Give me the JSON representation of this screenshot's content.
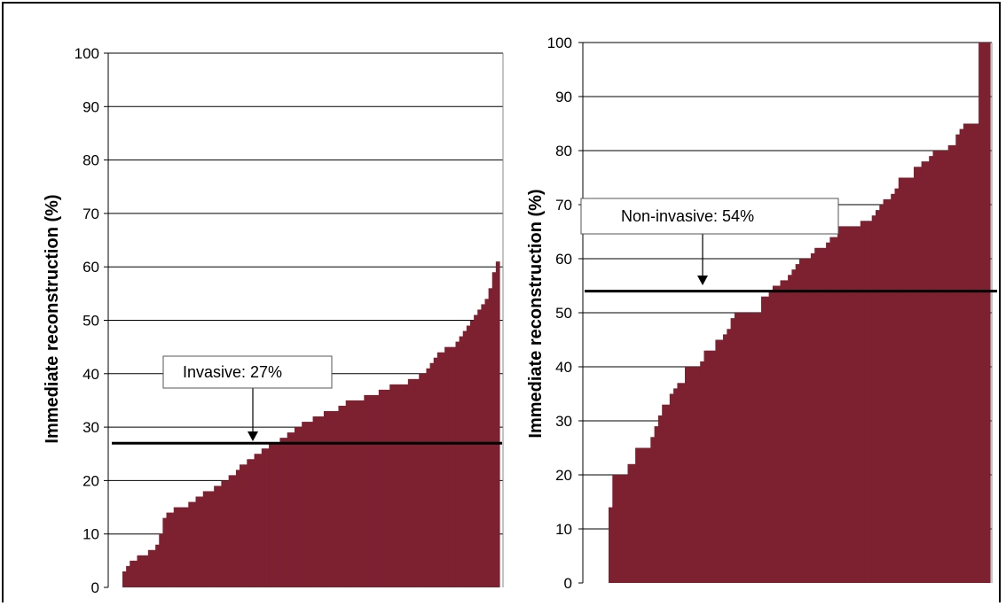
{
  "chart_data": [
    {
      "type": "bar",
      "ylabel": "Immediate reconstruction (%)",
      "ylim": [
        0,
        100
      ],
      "yticks": [
        0,
        10,
        20,
        30,
        40,
        50,
        60,
        70,
        80,
        90,
        100
      ],
      "yticks_text": [
        "0",
        "10",
        "20",
        "30",
        "40",
        "50",
        "60",
        "70",
        "80",
        "90",
        "100"
      ],
      "grid": true,
      "bar_color": "#7d2131",
      "values": [
        3,
        4,
        5,
        5,
        6,
        6,
        6,
        7,
        7,
        8,
        10,
        13,
        14,
        14,
        15,
        15,
        15,
        15,
        16,
        16,
        17,
        17,
        18,
        18,
        18,
        19,
        19,
        20,
        20,
        21,
        21,
        22,
        23,
        23,
        24,
        24,
        25,
        25,
        26,
        26,
        27,
        27,
        27,
        28,
        28,
        29,
        29,
        30,
        30,
        31,
        31,
        31,
        32,
        32,
        32,
        33,
        33,
        33,
        33,
        34,
        34,
        35,
        35,
        35,
        35,
        35,
        36,
        36,
        36,
        36,
        37,
        37,
        37,
        38,
        38,
        38,
        38,
        38,
        39,
        39,
        39,
        40,
        40,
        41,
        42,
        43,
        44,
        44,
        45,
        45,
        45,
        46,
        47,
        48,
        49,
        50,
        51,
        52,
        53,
        54,
        56,
        59,
        61
      ],
      "reference": {
        "value": 27,
        "label": "Invasive:  27%",
        "color": "#000000"
      }
    },
    {
      "type": "bar",
      "ylabel": "Immediate reconstruction (%)",
      "ylim": [
        0,
        100
      ],
      "yticks": [
        0,
        10,
        20,
        30,
        40,
        50,
        60,
        70,
        80,
        90,
        100
      ],
      "yticks_text": [
        "0",
        "10",
        "20",
        "30",
        "40",
        "50",
        "60",
        "70",
        "80",
        "90",
        "100"
      ],
      "grid": true,
      "bar_color": "#7d2131",
      "values": [
        14,
        20,
        20,
        20,
        20,
        22,
        22,
        25,
        25,
        25,
        25,
        27,
        29,
        31,
        33,
        33,
        35,
        36,
        37,
        37,
        40,
        40,
        40,
        40,
        41,
        43,
        43,
        43,
        45,
        45,
        46,
        47,
        49,
        50,
        50,
        50,
        50,
        50,
        50,
        50,
        53,
        53,
        54,
        55,
        55,
        56,
        56,
        57,
        58,
        59,
        60,
        60,
        60,
        61,
        62,
        62,
        62,
        63,
        64,
        64,
        66,
        66,
        66,
        66,
        66,
        66,
        67,
        67,
        67,
        68,
        69,
        70,
        71,
        71,
        72,
        73,
        75,
        75,
        75,
        75,
        77,
        77,
        78,
        78,
        79,
        80,
        80,
        80,
        80,
        81,
        81,
        83,
        84,
        85,
        85,
        85,
        85,
        100,
        100,
        100
      ],
      "reference": {
        "value": 54,
        "label": "Non-invasive:  54%",
        "color": "#000000"
      }
    }
  ]
}
